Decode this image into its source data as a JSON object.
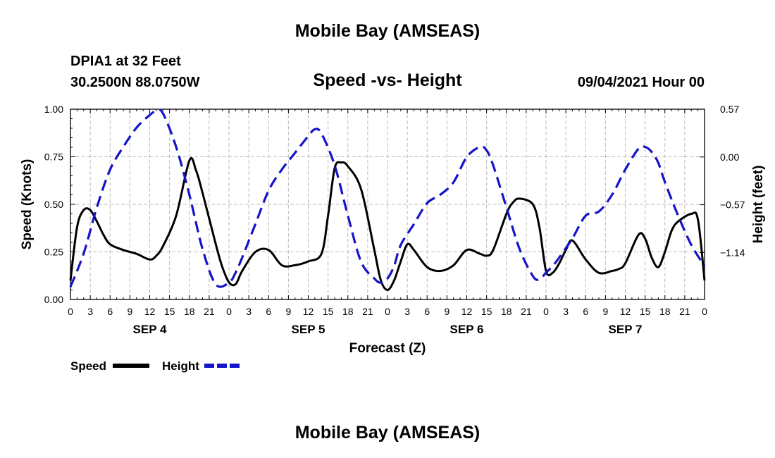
{
  "header": {
    "title_top": "Mobile Bay (AMSEAS)",
    "station": "DPIA1 at 32 Feet",
    "coords": "30.2500N  88.0750W",
    "subtitle": "Speed -vs- Height",
    "datetime": "09/04/2021 Hour 00",
    "title_bottom": "Mobile Bay (AMSEAS)"
  },
  "colors": {
    "speed": "#000000",
    "height": "#1414c8",
    "grid": "#bbbbbb"
  },
  "chart_data": {
    "type": "line",
    "title": "Speed -vs- Height",
    "xlabel": "Forecast (Z)",
    "ylabel_left": "Speed (Knots)",
    "ylabel_right": "Height (feet)",
    "x_range_hours": [
      0,
      96
    ],
    "ylim_left": [
      0,
      1.0
    ],
    "ylim_right": [
      -1.7,
      0.57
    ],
    "left_ticks": [
      "0.00",
      "0.25",
      "0.50",
      "0.75",
      "1.00"
    ],
    "left_tick_values": [
      0,
      0.25,
      0.5,
      0.75,
      1.0
    ],
    "right_ticks": [
      "0.57",
      "0.00",
      "−0.57",
      "−1.14"
    ],
    "right_tick_values": [
      0.57,
      0.0,
      -0.57,
      -1.14
    ],
    "x_tick_labels": [
      "0",
      "3",
      "6",
      "9",
      "12",
      "15",
      "18",
      "21",
      "0",
      "3",
      "6",
      "9",
      "12",
      "15",
      "18",
      "21",
      "0",
      "3",
      "6",
      "9",
      "12",
      "15",
      "18",
      "21",
      "0",
      "3",
      "6",
      "9",
      "12",
      "15",
      "18",
      "21",
      "0"
    ],
    "day_labels": [
      "SEP 4",
      "SEP 5",
      "SEP 6",
      "SEP 7"
    ],
    "day_label_hours": [
      12,
      36,
      60,
      84
    ],
    "legend": [
      {
        "name": "Speed",
        "style": "solid"
      },
      {
        "name": "Height",
        "style": "dashed"
      }
    ],
    "series": [
      {
        "name": "Speed",
        "axis": "left",
        "x": [
          0,
          1,
          2,
          3,
          4,
          5,
          6,
          8,
          10,
          12,
          13,
          14,
          16,
          18,
          19,
          20,
          22,
          23,
          24,
          25,
          26,
          28,
          30,
          32,
          34,
          36,
          38,
          39,
          40,
          41,
          42,
          44,
          46,
          47,
          48,
          49,
          50,
          51,
          52,
          54,
          56,
          58,
          60,
          62,
          63,
          64,
          66,
          67,
          68,
          70,
          71,
          72,
          73,
          74,
          75,
          76,
          78,
          80,
          82,
          83,
          84,
          86,
          87,
          88,
          89,
          90,
          91,
          92,
          94,
          95,
          96
        ],
        "values": [
          0.1,
          0.38,
          0.47,
          0.47,
          0.41,
          0.34,
          0.29,
          0.26,
          0.24,
          0.21,
          0.23,
          0.28,
          0.44,
          0.73,
          0.68,
          0.56,
          0.29,
          0.17,
          0.09,
          0.08,
          0.15,
          0.25,
          0.26,
          0.18,
          0.18,
          0.2,
          0.24,
          0.44,
          0.69,
          0.72,
          0.7,
          0.58,
          0.26,
          0.1,
          0.05,
          0.1,
          0.2,
          0.29,
          0.26,
          0.17,
          0.15,
          0.18,
          0.26,
          0.24,
          0.23,
          0.26,
          0.45,
          0.51,
          0.53,
          0.5,
          0.38,
          0.15,
          0.14,
          0.19,
          0.26,
          0.31,
          0.21,
          0.14,
          0.15,
          0.16,
          0.19,
          0.34,
          0.32,
          0.22,
          0.17,
          0.25,
          0.36,
          0.41,
          0.45,
          0.42,
          0.1
        ]
      },
      {
        "name": "Height",
        "axis": "right",
        "x": [
          0,
          2,
          4,
          6,
          8,
          10,
          12,
          13,
          14,
          16,
          18,
          20,
          22,
          24,
          25,
          26,
          28,
          30,
          32,
          34,
          36,
          37,
          38,
          40,
          42,
          44,
          46,
          47,
          48,
          49,
          50,
          52,
          54,
          56,
          58,
          60,
          62,
          63,
          64,
          66,
          68,
          70,
          71,
          72,
          73,
          74,
          76,
          78,
          80,
          82,
          84,
          86,
          87,
          88,
          89,
          90,
          92,
          94,
          96
        ],
        "values": [
          -1.55,
          -1.15,
          -0.6,
          -0.15,
          0.12,
          0.35,
          0.5,
          0.55,
          0.52,
          0.12,
          -0.45,
          -1.1,
          -1.52,
          -1.5,
          -1.38,
          -1.2,
          -0.8,
          -0.4,
          -0.15,
          0.05,
          0.25,
          0.33,
          0.28,
          -0.1,
          -0.7,
          -1.25,
          -1.45,
          -1.5,
          -1.45,
          -1.3,
          -1.05,
          -0.8,
          -0.55,
          -0.45,
          -0.3,
          0.0,
          0.12,
          0.08,
          -0.1,
          -0.6,
          -1.1,
          -1.42,
          -1.46,
          -1.38,
          -1.3,
          -1.2,
          -0.97,
          -0.7,
          -0.65,
          -0.45,
          -0.15,
          0.1,
          0.12,
          0.06,
          -0.07,
          -0.3,
          -0.7,
          -1.05,
          -1.3
        ]
      }
    ]
  }
}
